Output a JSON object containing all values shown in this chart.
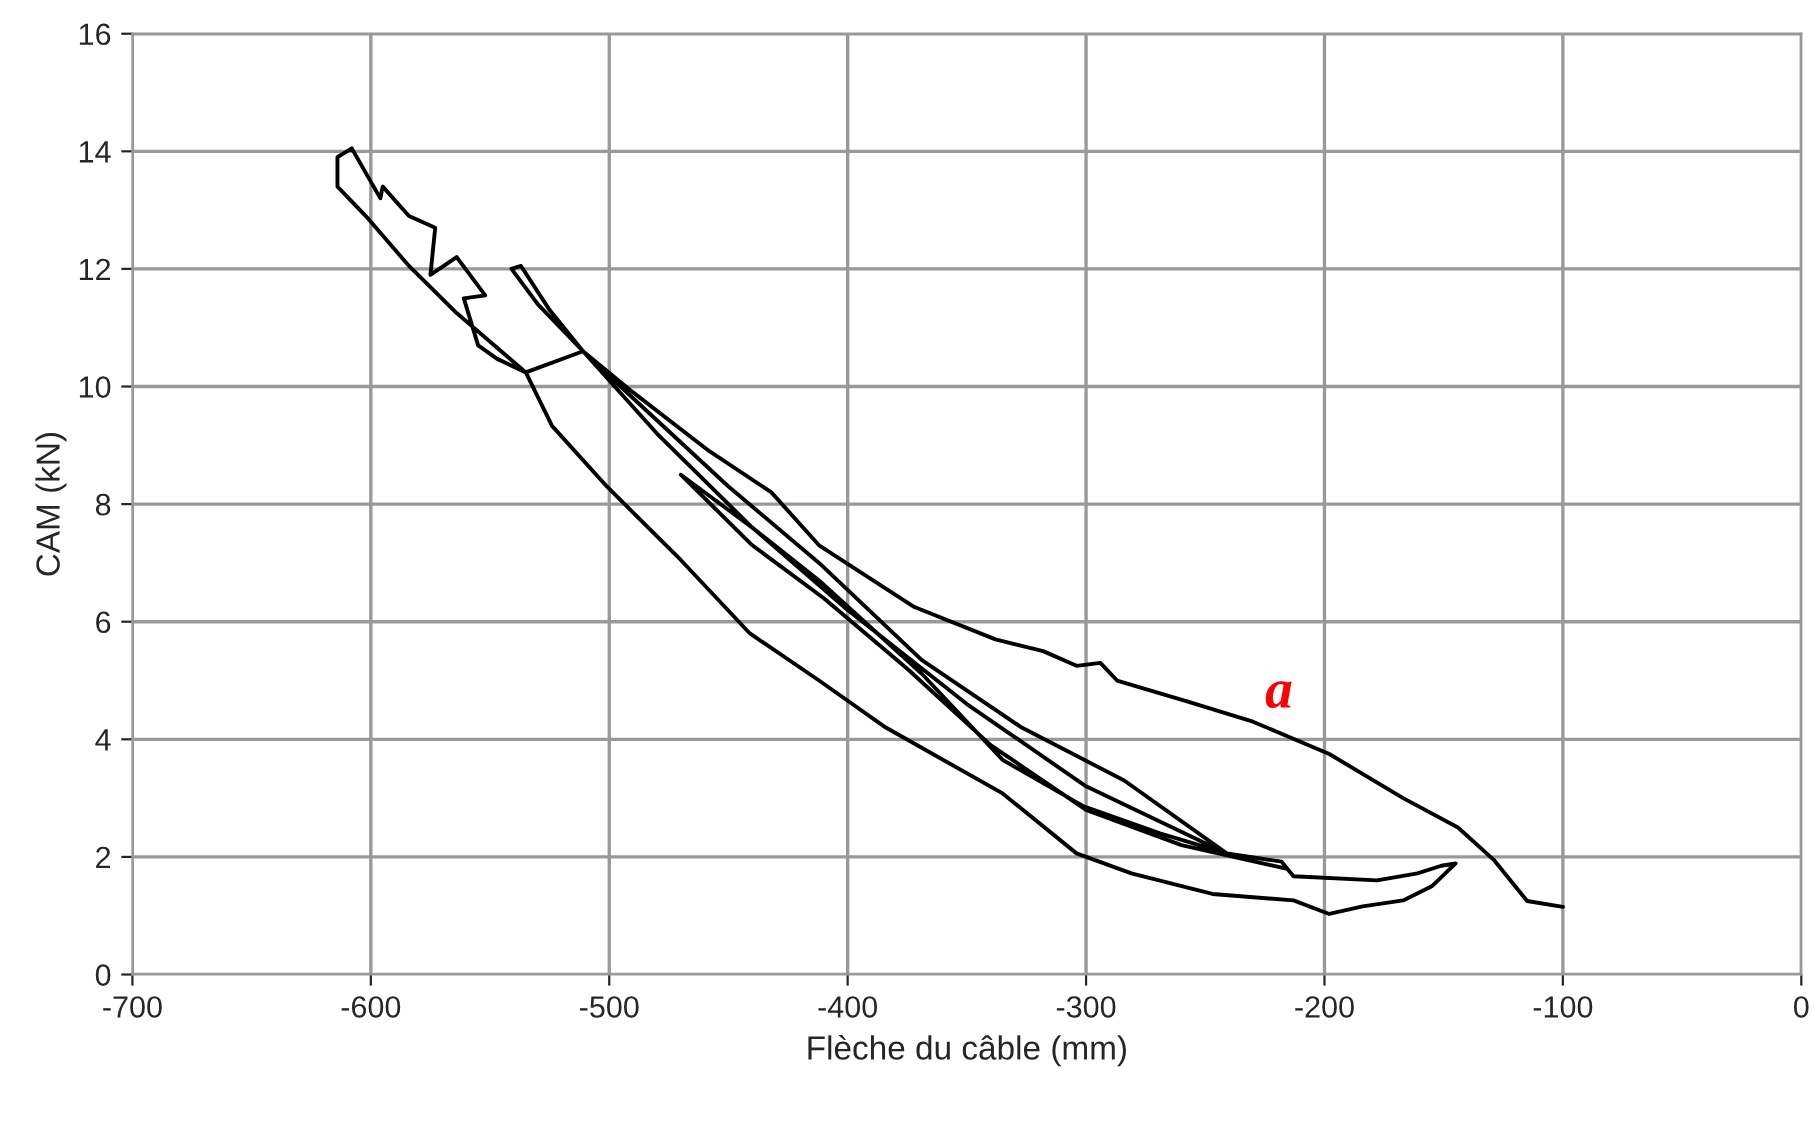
{
  "chart_data": {
    "type": "line",
    "xlabel": "Flèche du câble (mm)",
    "ylabel": "CAM (kN)",
    "x": [
      -100,
      -115,
      -129,
      -144,
      -167,
      -198,
      -230,
      -258,
      -287,
      -294,
      -304,
      -318,
      -338,
      -372,
      -412,
      -432,
      -458,
      -490,
      -511,
      -530,
      -541,
      -537,
      -525,
      -511,
      -535,
      -547,
      -555,
      -561,
      -552,
      -564,
      -575,
      -573,
      -584,
      -595,
      -596,
      -608,
      -614,
      -614,
      -601,
      -584,
      -564,
      -535,
      -524,
      -501,
      -470,
      -441,
      -412,
      -384,
      -335,
      -304,
      -281,
      -247,
      -213,
      -198,
      -184,
      -167,
      -155,
      -145,
      -151,
      -161,
      -178,
      -213,
      -215,
      -218,
      -241,
      -284,
      -327,
      -369,
      -412,
      -450,
      -490,
      -511,
      -480,
      -440,
      -412,
      -369,
      -335,
      -301,
      -269,
      -241,
      -300,
      -350,
      -400,
      -440,
      -470,
      -440,
      -410,
      -375,
      -340,
      -300,
      -260,
      -216
    ],
    "series": [
      {
        "color": "#000000",
        "values": [
          1.15,
          1.25,
          1.95,
          2.5,
          3.0,
          3.75,
          4.3,
          4.65,
          5.0,
          5.3,
          5.25,
          5.5,
          5.7,
          6.25,
          7.3,
          8.2,
          8.9,
          9.9,
          10.6,
          11.4,
          12.0,
          12.05,
          11.3,
          10.6,
          10.24,
          10.47,
          10.7,
          11.5,
          11.55,
          12.2,
          11.9,
          12.7,
          12.9,
          13.4,
          13.2,
          14.05,
          13.9,
          13.4,
          12.85,
          12.05,
          11.25,
          10.24,
          9.33,
          8.3,
          7.05,
          5.8,
          5.0,
          4.2,
          3.08,
          2.06,
          1.72,
          1.37,
          1.26,
          1.03,
          1.16,
          1.26,
          1.5,
          1.89,
          1.85,
          1.72,
          1.6,
          1.67,
          1.77,
          1.92,
          2.06,
          3.3,
          4.2,
          5.35,
          7.0,
          8.3,
          9.8,
          10.6,
          9.2,
          7.6,
          6.7,
          5.12,
          3.65,
          2.86,
          2.4,
          2.06,
          3.2,
          4.6,
          6.2,
          7.6,
          8.5,
          7.3,
          6.4,
          5.2,
          3.9,
          2.8,
          2.2,
          1.8
        ]
      }
    ],
    "xlim": [
      -700,
      0
    ],
    "xticks": [
      -700,
      -600,
      -500,
      -400,
      -300,
      -200,
      -100,
      0
    ],
    "ylim": [
      0,
      16
    ],
    "yticks": [
      0,
      2,
      4,
      6,
      8,
      10,
      12,
      14,
      16
    ],
    "grid": true,
    "legend": false,
    "annotations": [
      "a"
    ]
  }
}
